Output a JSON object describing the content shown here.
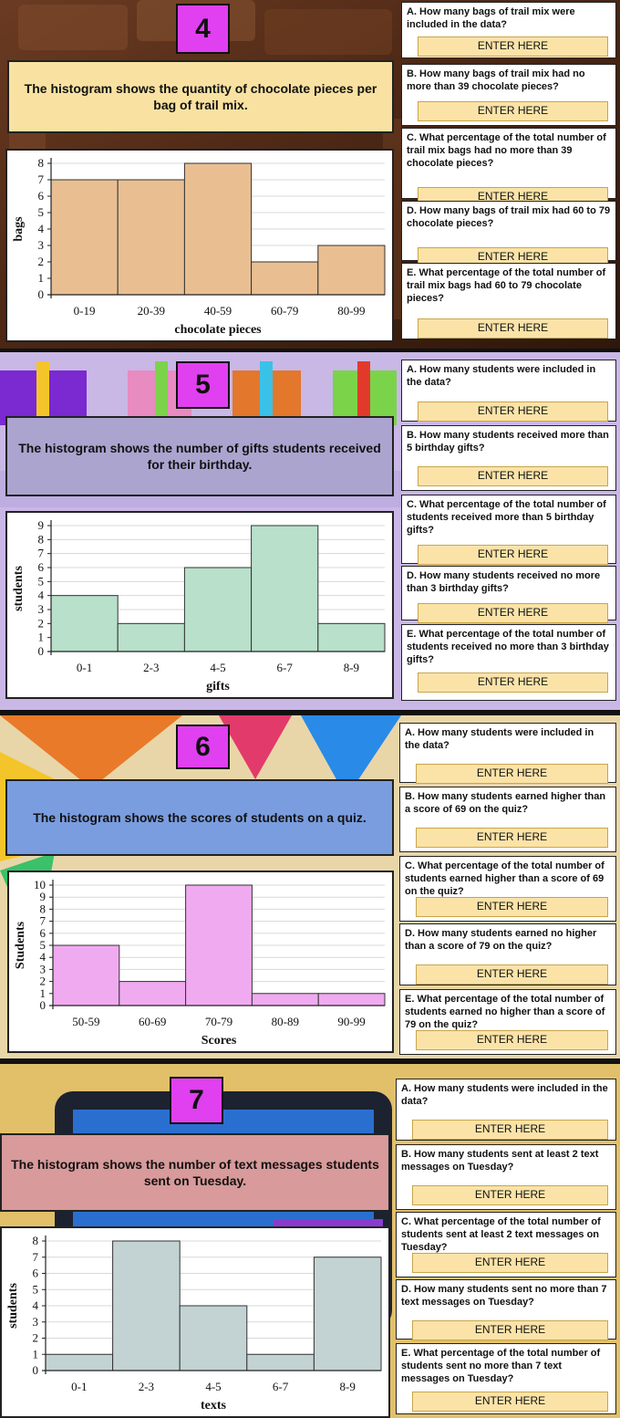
{
  "sections": [
    {
      "number": "4",
      "description": "The histogram shows the quantity of chocolate pieces per bag of trail mix.",
      "questions": [
        {
          "text": "A.  How many bags of trail mix were included in the data?",
          "button": "ENTER HERE"
        },
        {
          "text": "B.  How many bags of trail mix had no more than 39 chocolate pieces?",
          "button": "ENTER HERE"
        },
        {
          "text": "C.  What percentage of the total number of trail mix bags had no more than 39 chocolate pieces?",
          "button": "ENTER HERE"
        },
        {
          "text": "D.  How many bags of trail mix had 60 to 79 chocolate pieces?",
          "button": "ENTER HERE"
        },
        {
          "text": "E.  What percentage of the total number of trail mix bags had 60 to 79 chocolate pieces?",
          "button": "ENTER HERE"
        }
      ]
    },
    {
      "number": "5",
      "description": "The histogram shows the number of gifts students received for their birthday.",
      "questions": [
        {
          "text": "A.  How many students were included in the data?",
          "button": "ENTER HERE"
        },
        {
          "text": "B.  How many students received more than 5 birthday gifts?",
          "button": "ENTER HERE"
        },
        {
          "text": "C.  What percentage of the total number of students received more than 5 birthday gifts?",
          "button": "ENTER HERE"
        },
        {
          "text": "D.  How many students received no more than 3 birthday gifts?",
          "button": "ENTER HERE"
        },
        {
          "text": "E.  What percentage of the total number of students received no more than 3 birthday gifts?",
          "button": "ENTER HERE"
        }
      ]
    },
    {
      "number": "6",
      "description": "The histogram shows the scores of students on a quiz.",
      "questions": [
        {
          "text": "A.  How many students were included in the data?",
          "button": "ENTER HERE"
        },
        {
          "text": "B.  How many students earned higher than a score of 69 on the quiz?",
          "button": "ENTER HERE"
        },
        {
          "text": "C.  What percentage of the total number of students earned higher than a score of 69 on the quiz?",
          "button": "ENTER HERE"
        },
        {
          "text": "D.  How many students earned no higher than a score of 79 on the quiz?",
          "button": "ENTER HERE"
        },
        {
          "text": "E.  What percentage of the total number of students earned no higher than a score of 79 on the quiz?",
          "button": "ENTER HERE"
        }
      ]
    },
    {
      "number": "7",
      "description": "The histogram shows the number of text messages students sent on Tuesday.",
      "questions": [
        {
          "text": "A.  How many students were included in the data?",
          "button": "ENTER HERE"
        },
        {
          "text": "B.  How many students sent at least 2 text messages on Tuesday?",
          "button": "ENTER HERE"
        },
        {
          "text": "C.  What percentage of the total number of students sent at least 2 text messages on Tuesday?",
          "button": "ENTER HERE"
        },
        {
          "text": "D.  How many students sent no more than 7 text messages on Tuesday?",
          "button": "ENTER HERE"
        },
        {
          "text": "E.  What percentage of the total number of students sent no more than 7 text messages on Tuesday?",
          "button": "ENTER HERE"
        }
      ]
    }
  ],
  "chart_data": [
    {
      "type": "bar",
      "categories": [
        "0-19",
        "20-39",
        "40-59",
        "60-79",
        "80-99"
      ],
      "values": [
        7,
        7,
        8,
        2,
        3
      ],
      "xlabel": "chocolate pieces",
      "ylabel": "bags",
      "ylim": [
        0,
        8
      ],
      "bar_color": "#e9bf92"
    },
    {
      "type": "bar",
      "categories": [
        "0-1",
        "2-3",
        "4-5",
        "6-7",
        "8-9"
      ],
      "values": [
        4,
        2,
        6,
        9,
        2
      ],
      "xlabel": "gifts",
      "ylabel": "students",
      "ylim": [
        0,
        9
      ],
      "bar_color": "#b8e0cb"
    },
    {
      "type": "bar",
      "categories": [
        "50-59",
        "60-69",
        "70-79",
        "80-89",
        "90-99"
      ],
      "values": [
        5,
        2,
        10,
        1,
        1
      ],
      "xlabel": "Scores",
      "ylabel": "Students",
      "ylim": [
        0,
        10
      ],
      "bar_color": "#f0aaf0"
    },
    {
      "type": "bar",
      "categories": [
        "0-1",
        "2-3",
        "4-5",
        "6-7",
        "8-9"
      ],
      "values": [
        1,
        8,
        4,
        1,
        7
      ],
      "xlabel": "texts",
      "ylabel": "students",
      "ylim": [
        0,
        8
      ],
      "bar_color": "#c3d3d3"
    }
  ],
  "theme": {
    "number_color": "#e040f0",
    "desc_colors": [
      "#f9e2a1",
      "#aba4cf",
      "#7a9de0",
      "#d89a9a"
    ],
    "enter_color": "#fbe3a8"
  }
}
